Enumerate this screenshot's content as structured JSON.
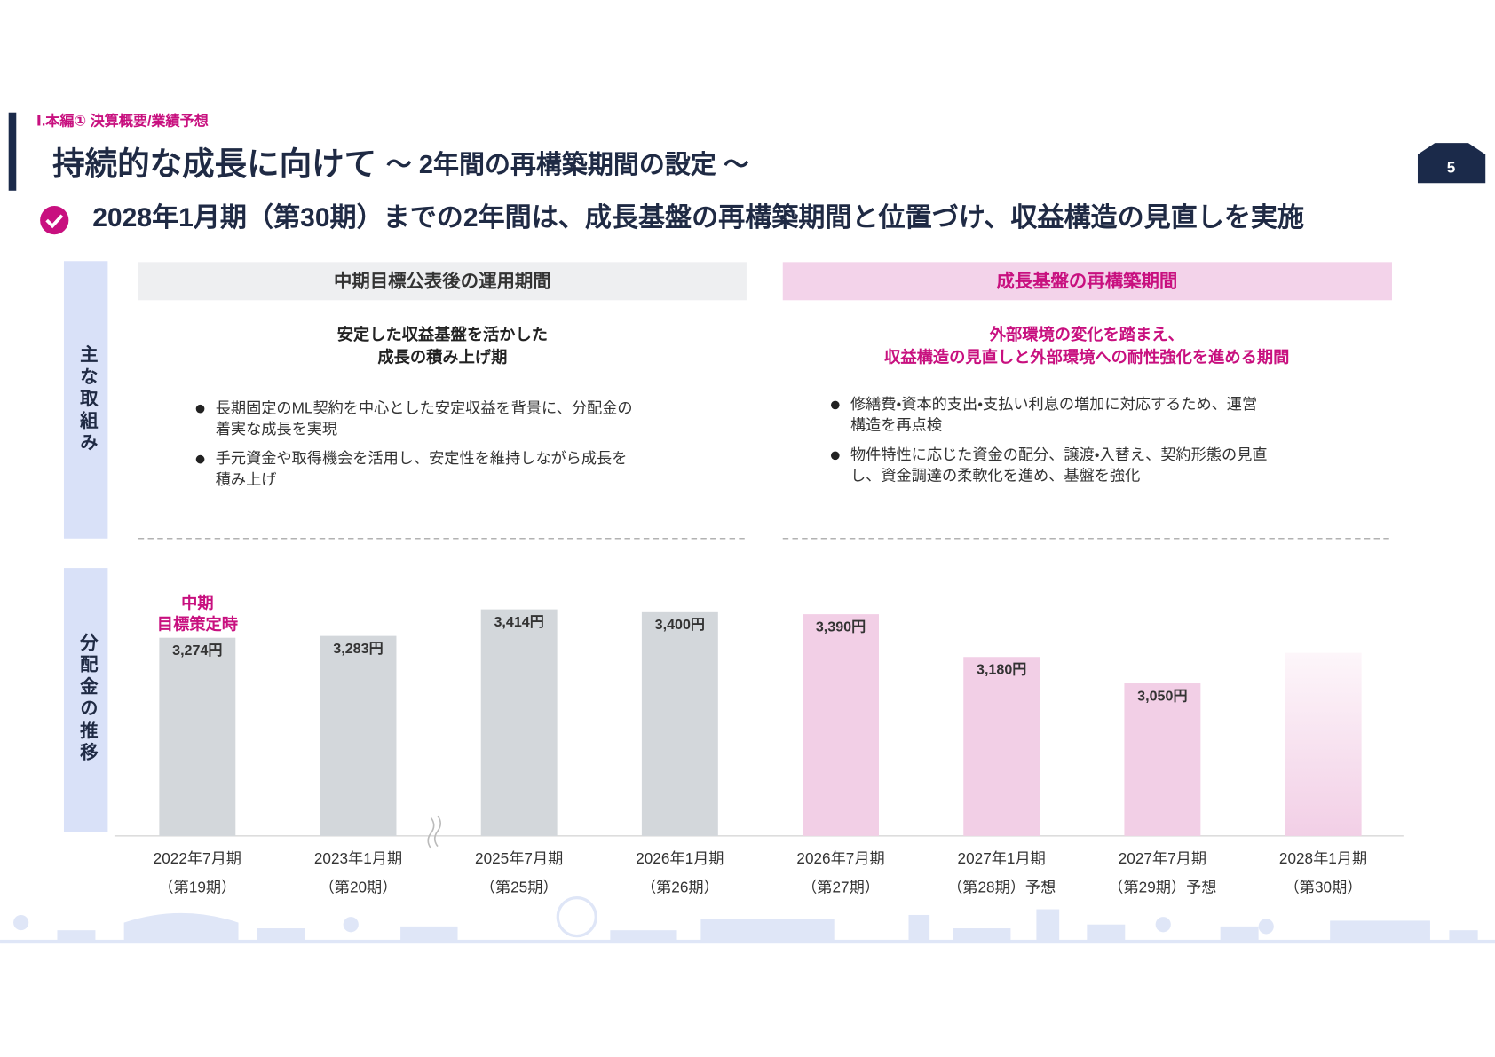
{
  "header": {
    "section": "Ⅰ.本編① 決算概要/業績予想",
    "title": "持続的な成長に向けて",
    "title_sub": "～ 2年間の再構築期間の設定 ～",
    "page_number": "5"
  },
  "headline": "2028年1月期（第30期）までの2年間は、成長基盤の再構築期間と位置づけ、収益構造の見直しを実施",
  "row_labels": [
    "主な取組み",
    "分配金の推移"
  ],
  "columns": [
    {
      "header": "中期目標公表後の運用期間",
      "subtitle": [
        "安定した収益基盤を活かした",
        "成長の積み上げ期"
      ],
      "bullets": [
        [
          "長期固定のML契約を中心とした安定収益を背景に、分配金の",
          "着実な成長を実現"
        ],
        [
          "手元資金や取得機会を活用し、安定性を維持しながら成長を",
          "積み上げ"
        ]
      ]
    },
    {
      "header": "成長基盤の再構築期間",
      "subtitle": [
        "外部環境の変化を踏まえ、",
        "収益構造の見直しと外部環境への耐性強化を進める期間"
      ],
      "bullets": [
        [
          "修繕費・資本的支出・支払い利息の増加に対応するため、運営",
          "構造を再点検"
        ],
        [
          "物件特性に応じた資金の配分、譲渡・入替え、契約形態の見直",
          "し、資金調達の柔軟化を進め、基盤を強化"
        ]
      ]
    }
  ],
  "chart_data": {
    "type": "bar",
    "categories": [
      "2022年7月期",
      "2023年1月期",
      "2025年7月期",
      "2026年1月期",
      "2026年7月期",
      "2027年1月期",
      "2027年7月期",
      "2028年1月期"
    ],
    "periods": [
      "（第19期）",
      "（第20期）",
      "（第25期）",
      "（第26期）",
      "（第27期）",
      "（第28期）予想",
      "（第29期）予想",
      "（第30期）"
    ],
    "values": [
      3274,
      3283,
      3414,
      3400,
      3390,
      3180,
      3050,
      null
    ],
    "value_labels": [
      "3,274円",
      "3,283円",
      "3,414円",
      "3,400円",
      "3,390円",
      "3,180円",
      "3,050円",
      null
    ],
    "colors": [
      "#d3d7db",
      "#d3d7db",
      "#d3d7db",
      "#d3d7db",
      "#f2cfe6",
      "#f2cfe6",
      "#f2cfe6",
      "#f2cfe6"
    ],
    "ylim": [
      2300,
      3500
    ],
    "annotation": [
      "中期",
      "目標策定時"
    ]
  }
}
